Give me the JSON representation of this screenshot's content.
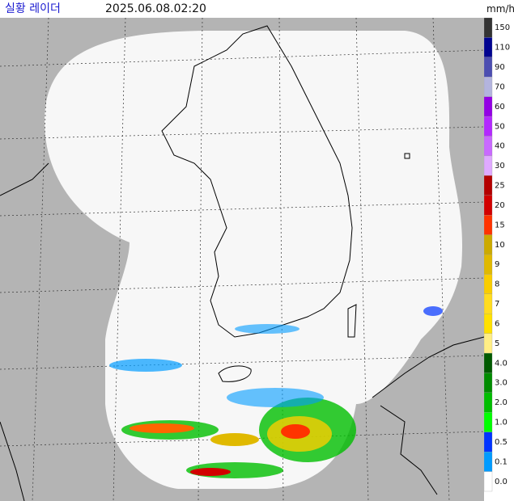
{
  "header": {
    "title": "실황 레이더",
    "timestamp": "2025.06.08.02:20"
  },
  "legend": {
    "unit": "mm/h",
    "items": [
      {
        "label": "150",
        "color": "#333333"
      },
      {
        "label": "110",
        "color": "#000390"
      },
      {
        "label": "90",
        "color": "#4c4eb1"
      },
      {
        "label": "70",
        "color": "#b3b4de"
      },
      {
        "label": "60",
        "color": "#9300e4"
      },
      {
        "label": "50",
        "color": "#b329ff"
      },
      {
        "label": "40",
        "color": "#c969ff"
      },
      {
        "label": "30",
        "color": "#dfa9ff"
      },
      {
        "label": "25",
        "color": "#b40000"
      },
      {
        "label": "20",
        "color": "#d20000"
      },
      {
        "label": "15",
        "color": "#ff3300"
      },
      {
        "label": "10",
        "color": "#ccaa00"
      },
      {
        "label": "9",
        "color": "#e0b900"
      },
      {
        "label": "8",
        "color": "#f9cd00"
      },
      {
        "label": "7",
        "color": "#ffdc1f"
      },
      {
        "label": "6",
        "color": "#ffe100"
      },
      {
        "label": "5",
        "color": "#ffee85"
      },
      {
        "label": "4.0",
        "color": "#005a00"
      },
      {
        "label": "3.0",
        "color": "#008c00"
      },
      {
        "label": "2.0",
        "color": "#00be00"
      },
      {
        "label": "1.0",
        "color": "#00ff00"
      },
      {
        "label": "0.5",
        "color": "#0033ff"
      },
      {
        "label": "0.1",
        "color": "#009bff"
      },
      {
        "label": "0.0",
        "color": "#ffffff"
      }
    ]
  }
}
